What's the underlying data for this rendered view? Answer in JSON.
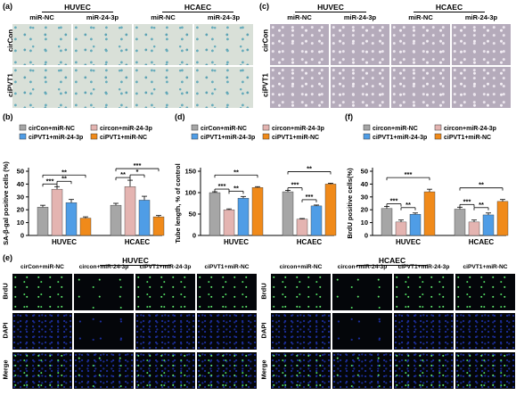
{
  "figure": {
    "panels": {
      "a": "(a)",
      "b": "(b)",
      "c": "(c)",
      "d": "(d)",
      "e": "(e)",
      "f": "(f)"
    },
    "cells": {
      "huvec": "HUVEC",
      "hcaec": "HCAEC"
    },
    "mirna": {
      "nc": "miR-NC",
      "mir": "miR-24-3p"
    },
    "rows": {
      "circon": "cirCon",
      "cipvt1": "ciPVT1"
    },
    "fluor_rows": {
      "brdu": "BrdU",
      "dapi": "DAPI",
      "merge": "Merge"
    },
    "fluor_cols": [
      "cirCon+miR-NC",
      "circon+miR-24-3p",
      "ciPVT1+miR-24-3p",
      "ciPVT1+miR-NC"
    ],
    "fluor_cols_hcaec": [
      "circon+miR-NC",
      "circon+miR-24-3p",
      "ciPVT1+miR-24-3p",
      "ciPVT1+miR-NC"
    ]
  },
  "chart_data": [
    {
      "type": "bar",
      "panel": "b",
      "ylabel": "SA-β-gal positive cells (%)",
      "categories": [
        "HUVEC",
        "HCAEC"
      ],
      "ylim": [
        0,
        50
      ],
      "yticks": [
        0,
        10,
        20,
        30,
        40,
        50
      ],
      "series": [
        {
          "name": "cirCon+miR-NC",
          "color": "#a6a6a6",
          "values": [
            22,
            23.5
          ],
          "errors": [
            1.5,
            1.5
          ]
        },
        {
          "name": "circon+miR-24-3p",
          "color": "#e4b4b1",
          "values": [
            36,
            38
          ],
          "errors": [
            2,
            5
          ]
        },
        {
          "name": "ciPVT1+miR-24-3p",
          "color": "#4f9de6",
          "values": [
            25.5,
            27.5
          ],
          "errors": [
            2.5,
            3
          ]
        },
        {
          "name": "ciPVT1+miR-NC",
          "color": "#f08a1a",
          "values": [
            13.5,
            14.5
          ],
          "errors": [
            1,
            1
          ]
        }
      ],
      "sig": [
        {
          "group": 0,
          "from": 0,
          "to": 1,
          "label": "***"
        },
        {
          "group": 0,
          "from": 0,
          "to": 3,
          "label": "**"
        },
        {
          "group": 0,
          "from": 1,
          "to": 2,
          "label": "**"
        },
        {
          "group": 1,
          "from": 0,
          "to": 1,
          "label": "**"
        },
        {
          "group": 1,
          "from": 0,
          "to": 3,
          "label": "***"
        },
        {
          "group": 1,
          "from": 1,
          "to": 2,
          "label": "*"
        }
      ]
    },
    {
      "type": "bar",
      "panel": "d",
      "ylabel": "Tube length, % of control",
      "categories": [
        "HUVEC",
        "HCAEC"
      ],
      "ylim": [
        0,
        150
      ],
      "yticks": [
        0,
        50,
        100,
        150
      ],
      "series": [
        {
          "name": "cirCon+miR-NC",
          "color": "#a6a6a6",
          "values": [
            100,
            102
          ],
          "errors": [
            2,
            3
          ]
        },
        {
          "name": "circon+miR-24-3p",
          "color": "#e4b4b1",
          "values": [
            60,
            38
          ],
          "errors": [
            2,
            1.5
          ]
        },
        {
          "name": "ciPVT1+miR-24-3p",
          "color": "#4f9de6",
          "values": [
            87,
            69
          ],
          "errors": [
            4,
            2
          ]
        },
        {
          "name": "ciPVT1+miR-NC",
          "color": "#f08a1a",
          "values": [
            112,
            120
          ],
          "errors": [
            2,
            2
          ]
        }
      ],
      "sig": [
        {
          "group": 0,
          "from": 0,
          "to": 1,
          "label": "***"
        },
        {
          "group": 0,
          "from": 0,
          "to": 3,
          "label": "**"
        },
        {
          "group": 0,
          "from": 1,
          "to": 2,
          "label": "**"
        },
        {
          "group": 1,
          "from": 0,
          "to": 1,
          "label": "***"
        },
        {
          "group": 1,
          "from": 0,
          "to": 3,
          "label": "**"
        },
        {
          "group": 1,
          "from": 1,
          "to": 2,
          "label": "***"
        }
      ]
    },
    {
      "type": "bar",
      "panel": "f",
      "ylabel": "BrdU positive cells(%)",
      "categories": [
        "HUVEC",
        "HCAEC"
      ],
      "ylim": [
        0,
        50
      ],
      "yticks": [
        0,
        10,
        20,
        30,
        40,
        50
      ],
      "series": [
        {
          "name": "circon+miR-NC",
          "color": "#a6a6a6",
          "values": [
            21,
            20.5
          ],
          "errors": [
            1.5,
            1.5
          ]
        },
        {
          "name": "circon+miR-24-3p",
          "color": "#e4b4b1",
          "values": [
            10.5,
            10.5
          ],
          "errors": [
            1.5,
            1.5
          ]
        },
        {
          "name": "ciPVT1+miR-24-3p",
          "color": "#4f9de6",
          "values": [
            16.5,
            16
          ],
          "errors": [
            1,
            1.5
          ]
        },
        {
          "name": "ciPVT1+miR-NC",
          "color": "#f08a1a",
          "values": [
            34,
            26.5
          ],
          "errors": [
            2,
            1.5
          ]
        }
      ],
      "sig": [
        {
          "group": 0,
          "from": 0,
          "to": 1,
          "label": "***"
        },
        {
          "group": 0,
          "from": 0,
          "to": 3,
          "label": "***"
        },
        {
          "group": 0,
          "from": 1,
          "to": 2,
          "label": "**"
        },
        {
          "group": 1,
          "from": 0,
          "to": 1,
          "label": "***"
        },
        {
          "group": 1,
          "from": 0,
          "to": 3,
          "label": "**"
        },
        {
          "group": 1,
          "from": 1,
          "to": 2,
          "label": "**"
        }
      ]
    }
  ]
}
